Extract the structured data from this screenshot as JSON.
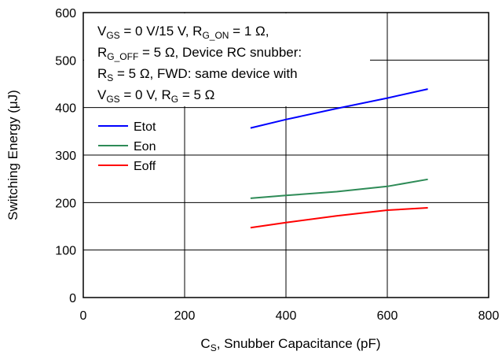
{
  "chart_data": {
    "type": "line",
    "xlabel": {
      "main": "C",
      "sub": "S",
      "rest": ", Snubber Capacitance (pF)"
    },
    "ylabel": {
      "pre": "Switching Energy (",
      "mu": "μ",
      "post": "J)"
    },
    "xlim": [
      0,
      800
    ],
    "ylim": [
      0,
      600
    ],
    "xticks": [
      "0",
      "200",
      "400",
      "600",
      "800"
    ],
    "yticks": [
      "0",
      "100",
      "200",
      "300",
      "400",
      "500",
      "600"
    ],
    "grid": true,
    "legend_position": "left, mid-upper inside plot",
    "series": [
      {
        "name": "Etot",
        "color": "#0000ff",
        "x": [
          330,
          400,
          500,
          600,
          680
        ],
        "y": [
          357,
          375,
          398,
          420,
          439
        ]
      },
      {
        "name": "Eon",
        "color": "#2e8b57",
        "x": [
          330,
          400,
          500,
          600,
          680
        ],
        "y": [
          209,
          215,
          223,
          234,
          249
        ]
      },
      {
        "name": "Eoff",
        "color": "#ff0000",
        "x": [
          330,
          400,
          500,
          600,
          680
        ],
        "y": [
          147,
          158,
          172,
          184,
          189
        ]
      }
    ],
    "annotation": {
      "lines": [
        [
          {
            "t": "V"
          },
          {
            "t": "GS",
            "sub": true
          },
          {
            "t": " = 0 V/15 V, R"
          },
          {
            "t": "G_ON",
            "sub": true
          },
          {
            "t": " = 1 Ω,"
          }
        ],
        [
          {
            "t": "R"
          },
          {
            "t": "G_OFF",
            "sub": true
          },
          {
            "t": " = 5 Ω, Device RC snubber:"
          }
        ],
        [
          {
            "t": "R"
          },
          {
            "t": "S",
            "sub": true
          },
          {
            "t": " = 5 Ω, FWD: same device with"
          }
        ],
        [
          {
            "t": "V"
          },
          {
            "t": "GS",
            "sub": true
          },
          {
            "t": " = 0 V, R"
          },
          {
            "t": "G",
            "sub": true
          },
          {
            "t": " = 5 Ω"
          }
        ]
      ]
    }
  }
}
